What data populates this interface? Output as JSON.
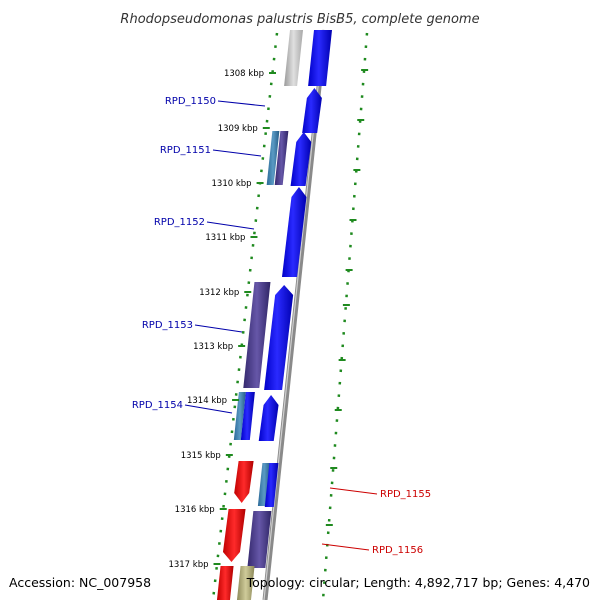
{
  "title": "Rhodopseudomonas palustris BisB5, complete genome",
  "footer": {
    "accession": "Accession: NC_007958",
    "topology": "Topology: circular; Length: 4,892,717 bp; Genes: 4,470"
  },
  "colors": {
    "forward_cds": "#0000ee",
    "reverse_cds": "#4a3a8a",
    "reverse_other": "#3d7aa8",
    "forward_red": "#ee0000",
    "label_forward": "#0000aa",
    "label_red": "#cc0000",
    "tick_green": "#1f8a1f",
    "backbone": "#888888"
  },
  "scale_ticks": [
    {
      "label": "1308 kbp"
    },
    {
      "label": "1309 kbp"
    },
    {
      "label": "1310 kbp"
    },
    {
      "label": "1311 kbp"
    },
    {
      "label": "1312 kbp"
    },
    {
      "label": "1313 kbp"
    },
    {
      "label": "1314 kbp"
    },
    {
      "label": "1315 kbp"
    },
    {
      "label": "1316 kbp"
    },
    {
      "label": "1317 kbp"
    }
  ],
  "gene_labels": [
    {
      "name": "RPD_1150",
      "group": "blue"
    },
    {
      "name": "RPD_1151",
      "group": "blue"
    },
    {
      "name": "RPD_1152",
      "group": "blue"
    },
    {
      "name": "RPD_1153",
      "group": "blue"
    },
    {
      "name": "RPD_1154",
      "group": "blue"
    },
    {
      "name": "RPD_1155",
      "group": "red"
    },
    {
      "name": "RPD_1156",
      "group": "red"
    }
  ]
}
